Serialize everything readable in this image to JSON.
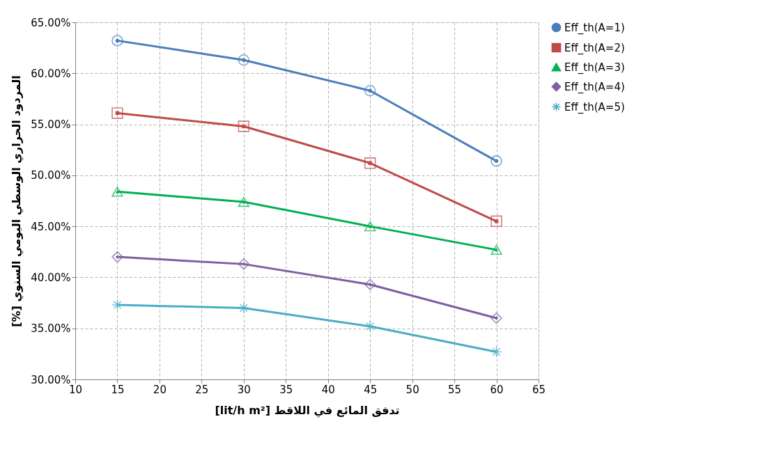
{
  "chart_data": {
    "type": "line",
    "xlabel": "[lit/h m²] تدفق المائع في اللاقط",
    "ylabel": "[%] المردود الحراري الوسطي اليومي السنوي",
    "x": [
      15,
      30,
      45,
      60
    ],
    "series": [
      {
        "name": "Eff_th(A=1)",
        "color": "#4a7ebb",
        "marker": "circle",
        "values": [
          63.2,
          61.3,
          58.3,
          51.4
        ]
      },
      {
        "name": "Eff_th(A=2)",
        "color": "#be4b48",
        "marker": "square",
        "values": [
          56.1,
          54.8,
          51.2,
          45.5
        ]
      },
      {
        "name": "Eff_th(A=3)",
        "color": "#00b050",
        "marker": "triangle",
        "values": [
          48.4,
          47.4,
          45.0,
          42.7
        ]
      },
      {
        "name": "Eff_th(A=4)",
        "color": "#7d5fa0",
        "marker": "diamond",
        "values": [
          42.0,
          41.3,
          39.3,
          36.0
        ]
      },
      {
        "name": "Eff_th(A=5)",
        "color": "#4bacc6",
        "marker": "cross",
        "values": [
          37.3,
          37.0,
          35.2,
          32.7
        ]
      }
    ],
    "xlim": [
      10,
      65
    ],
    "xticks": [
      10,
      15,
      20,
      25,
      30,
      35,
      40,
      45,
      50,
      55,
      60,
      65
    ],
    "ylim": [
      30,
      65
    ],
    "yticks": [
      {
        "value": 30,
        "label": "30.00%"
      },
      {
        "value": 35,
        "label": "35.00%"
      },
      {
        "value": 40,
        "label": "40.00%"
      },
      {
        "value": 45,
        "label": "45.00%"
      },
      {
        "value": 50,
        "label": "50.00%"
      },
      {
        "value": 55,
        "label": "55.00%"
      },
      {
        "value": 60,
        "label": "60.00%"
      },
      {
        "value": 65,
        "label": "65.00%"
      }
    ],
    "grid": true,
    "legend": "right",
    "line_style": "solid"
  }
}
